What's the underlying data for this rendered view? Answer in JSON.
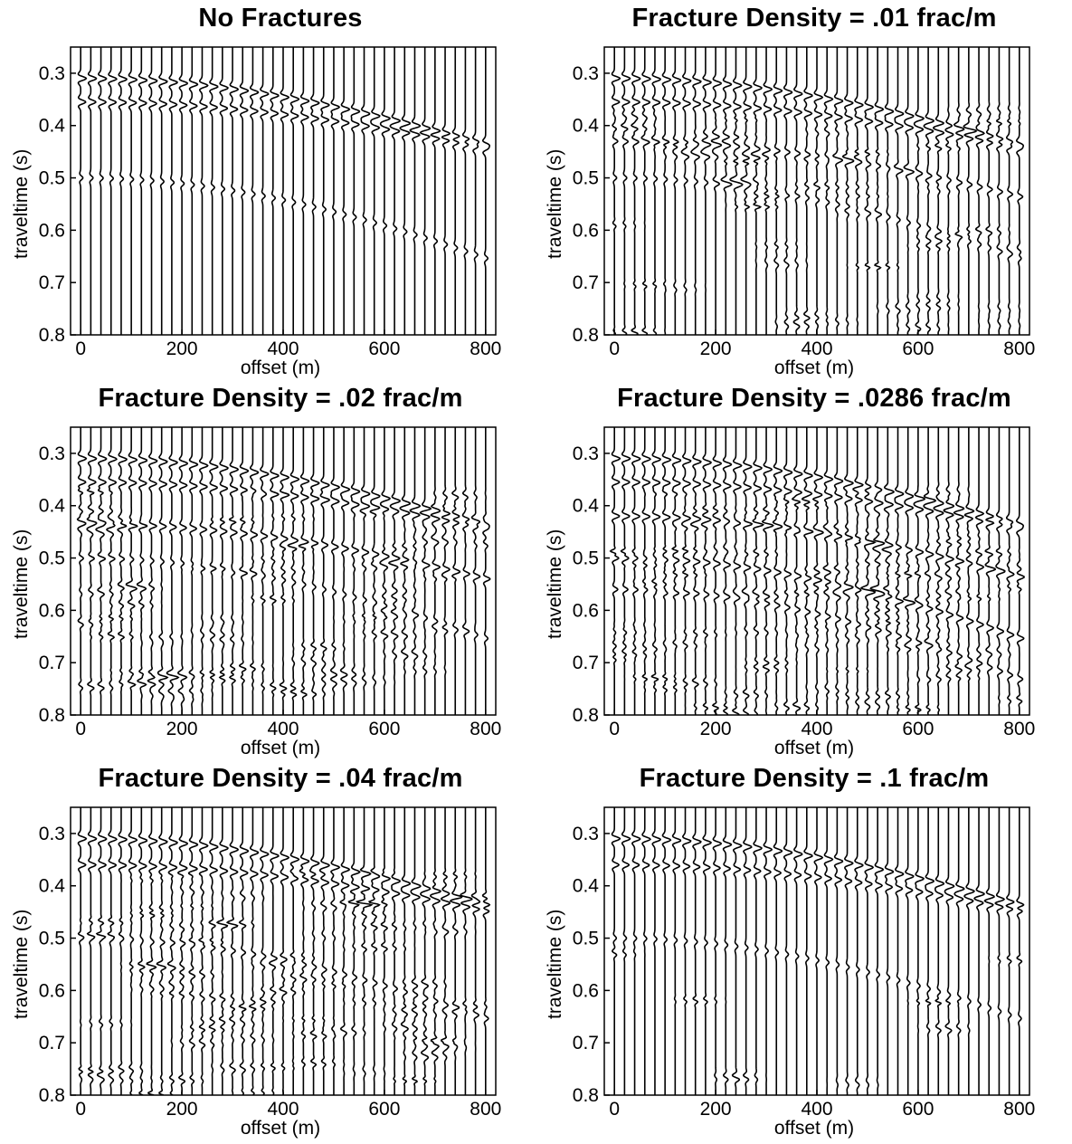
{
  "chart_data": [
    {
      "type": "line",
      "title": "No Fractures",
      "xlabel": "offset (m)",
      "ylabel": "traveltime (s)",
      "xlim": [
        -20,
        820
      ],
      "ylim": [
        0.8,
        0.25
      ],
      "xticks": [
        "0",
        "200",
        "400",
        "600",
        "800"
      ],
      "yticks": [
        "0.3",
        "0.4",
        "0.5",
        "0.6",
        "0.7",
        "0.8"
      ],
      "trace_offsets_start": 0,
      "trace_offsets_step": 20,
      "trace_count": 41,
      "events": [
        {
          "t0": 0.31,
          "velocity": 2600,
          "amplitude": 1.0
        },
        {
          "t0": 0.355,
          "velocity": 3000,
          "amplitude": 0.9
        },
        {
          "t0": 0.5,
          "velocity": 1900,
          "amplitude": 0.4
        }
      ],
      "scattered_energy": 0.0
    },
    {
      "type": "line",
      "title": "Fracture Density = .01 frac/m",
      "xlabel": "offset (m)",
      "ylabel": "traveltime (s)",
      "xlim": [
        -20,
        820
      ],
      "ylim": [
        0.8,
        0.25
      ],
      "xticks": [
        "0",
        "200",
        "400",
        "600",
        "800"
      ],
      "yticks": [
        "0.3",
        "0.4",
        "0.5",
        "0.6",
        "0.7",
        "0.8"
      ],
      "trace_offsets_start": 0,
      "trace_offsets_step": 20,
      "trace_count": 41,
      "events": [
        {
          "t0": 0.31,
          "velocity": 2600,
          "amplitude": 1.0
        },
        {
          "t0": 0.355,
          "velocity": 3000,
          "amplitude": 0.9
        },
        {
          "t0": 0.43,
          "velocity": 2500,
          "amplitude": 0.6
        },
        {
          "t0": 0.5,
          "velocity": 1900,
          "amplitude": 0.4
        }
      ],
      "scattered_energy": 0.4
    },
    {
      "type": "line",
      "title": "Fracture Density = .02 frac/m",
      "xlabel": "offset (m)",
      "ylabel": "traveltime (s)",
      "xlim": [
        -20,
        820
      ],
      "ylim": [
        0.8,
        0.25
      ],
      "xticks": [
        "0",
        "200",
        "400",
        "600",
        "800"
      ],
      "yticks": [
        "0.3",
        "0.4",
        "0.5",
        "0.6",
        "0.7",
        "0.8"
      ],
      "trace_offsets_start": 0,
      "trace_offsets_step": 20,
      "trace_count": 41,
      "events": [
        {
          "t0": 0.31,
          "velocity": 2600,
          "amplitude": 1.0
        },
        {
          "t0": 0.355,
          "velocity": 3000,
          "amplitude": 0.9
        },
        {
          "t0": 0.435,
          "velocity": 2500,
          "amplitude": 0.8
        },
        {
          "t0": 0.5,
          "velocity": 1900,
          "amplitude": 0.4
        }
      ],
      "scattered_energy": 0.55
    },
    {
      "type": "line",
      "title": "Fracture Density = .0286 frac/m",
      "xlabel": "offset (m)",
      "ylabel": "traveltime (s)",
      "xlim": [
        -20,
        820
      ],
      "ylim": [
        0.8,
        0.25
      ],
      "xticks": [
        "0",
        "200",
        "400",
        "600",
        "800"
      ],
      "yticks": [
        "0.3",
        "0.4",
        "0.5",
        "0.6",
        "0.7",
        "0.8"
      ],
      "trace_offsets_start": 0,
      "trace_offsets_step": 20,
      "trace_count": 41,
      "events": [
        {
          "t0": 0.31,
          "velocity": 2600,
          "amplitude": 1.0
        },
        {
          "t0": 0.355,
          "velocity": 3000,
          "amplitude": 0.9
        },
        {
          "t0": 0.42,
          "velocity": 2400,
          "amplitude": 0.9
        },
        {
          "t0": 0.5,
          "velocity": 1900,
          "amplitude": 0.8
        },
        {
          "t0": 0.56,
          "velocity": 1700,
          "amplitude": 0.6
        }
      ],
      "scattered_energy": 0.7
    },
    {
      "type": "line",
      "title": "Fracture Density = .04 frac/m",
      "xlabel": "offset (m)",
      "ylabel": "traveltime (s)",
      "xlim": [
        -20,
        820
      ],
      "ylim": [
        0.8,
        0.25
      ],
      "xticks": [
        "0",
        "200",
        "400",
        "600",
        "800"
      ],
      "yticks": [
        "0.3",
        "0.4",
        "0.5",
        "0.6",
        "0.7",
        "0.8"
      ],
      "trace_offsets_start": 0,
      "trace_offsets_step": 20,
      "trace_count": 41,
      "events": [
        {
          "t0": 0.31,
          "velocity": 2600,
          "amplitude": 1.0
        },
        {
          "t0": 0.36,
          "velocity": 3000,
          "amplitude": 0.9
        },
        {
          "t0": 0.5,
          "velocity": 1900,
          "amplitude": 0.5
        }
      ],
      "scattered_energy": 0.6
    },
    {
      "type": "line",
      "title": "Fracture Density = .1 frac/m",
      "xlabel": "offset (m)",
      "ylabel": "traveltime (s)",
      "xlim": [
        -20,
        820
      ],
      "ylim": [
        0.8,
        0.25
      ],
      "xticks": [
        "0",
        "200",
        "400",
        "600",
        "800"
      ],
      "yticks": [
        "0.3",
        "0.4",
        "0.5",
        "0.6",
        "0.7",
        "0.8"
      ],
      "trace_offsets_start": 0,
      "trace_offsets_step": 20,
      "trace_count": 41,
      "events": [
        {
          "t0": 0.31,
          "velocity": 2600,
          "amplitude": 1.0
        },
        {
          "t0": 0.36,
          "velocity": 3000,
          "amplitude": 0.8
        },
        {
          "t0": 0.5,
          "velocity": 1900,
          "amplitude": 0.35
        }
      ],
      "scattered_energy": 0.05
    }
  ]
}
